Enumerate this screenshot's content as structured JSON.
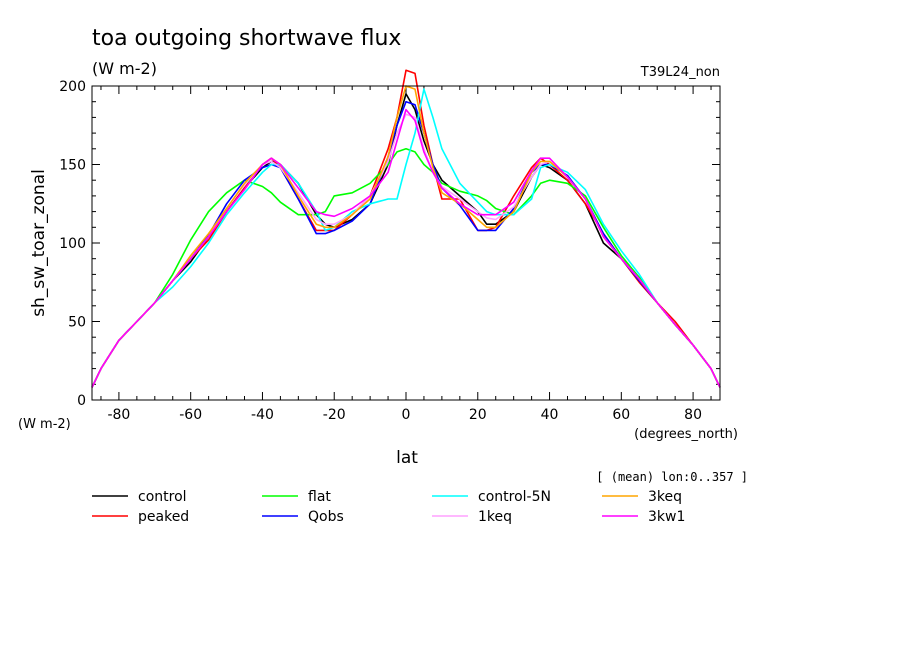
{
  "header": {
    "title": "toa outgoing shortwave flux",
    "units": "(W m-2)",
    "run": "T39L24_non"
  },
  "axes": {
    "ylabel": "sh_sw_toar_zonal",
    "y_units": "(W m-2)",
    "xlabel": "lat",
    "x_units": "(degrees_north)",
    "mean_note": "[ (mean) lon:0..357 ]"
  },
  "chart_data": {
    "type": "line",
    "title": "toa outgoing shortwave flux",
    "subtitle": "(W m-2)",
    "xlabel": "lat",
    "ylabel": "sh_sw_toar_zonal",
    "xlim": [
      -87.5,
      87.5
    ],
    "ylim": [
      0,
      200
    ],
    "xticks": [
      -80,
      -60,
      -40,
      -20,
      0,
      20,
      40,
      60,
      80
    ],
    "yticks": [
      0,
      50,
      100,
      150,
      200
    ],
    "x": [
      -87.5,
      -85,
      -80,
      -75,
      -70,
      -65,
      -60,
      -55,
      -50,
      -45,
      -40,
      -37.5,
      -35,
      -30,
      -25,
      -22.5,
      -20,
      -15,
      -10,
      -5,
      -2.5,
      0,
      2.5,
      5,
      7.5,
      10,
      15,
      20,
      22.5,
      25,
      30,
      35,
      37.5,
      40,
      45,
      50,
      55,
      60,
      65,
      70,
      75,
      80,
      85,
      87.5
    ],
    "series": [
      {
        "name": "control",
        "color": "#000000",
        "values": [
          8,
          20,
          38,
          50,
          62,
          76,
          88,
          104,
          120,
          135,
          148,
          152,
          150,
          138,
          118,
          112,
          110,
          115,
          125,
          150,
          175,
          195,
          185,
          165,
          150,
          140,
          130,
          120,
          112,
          112,
          120,
          142,
          150,
          148,
          140,
          125,
          100,
          90,
          78,
          62,
          48,
          35,
          20,
          8
        ]
      },
      {
        "name": "peaked",
        "color": "#ff0000",
        "values": [
          8,
          20,
          38,
          50,
          62,
          76,
          90,
          102,
          120,
          135,
          150,
          154,
          148,
          128,
          108,
          108,
          108,
          118,
          130,
          160,
          180,
          210,
          208,
          175,
          150,
          128,
          128,
          108,
          108,
          110,
          130,
          148,
          154,
          150,
          140,
          125,
          106,
          90,
          75,
          62,
          50,
          35,
          20,
          8
        ]
      },
      {
        "name": "flat",
        "color": "#00ff00",
        "values": [
          8,
          20,
          38,
          50,
          62,
          80,
          102,
          120,
          132,
          140,
          136,
          132,
          126,
          118,
          118,
          120,
          130,
          132,
          138,
          150,
          158,
          160,
          158,
          150,
          145,
          138,
          133,
          130,
          127,
          122,
          118,
          130,
          138,
          140,
          138,
          130,
          110,
          92,
          78,
          62,
          48,
          35,
          20,
          8
        ]
      },
      {
        "name": "Qobs",
        "color": "#0000ff",
        "values": [
          8,
          20,
          38,
          50,
          62,
          76,
          90,
          105,
          125,
          140,
          148,
          150,
          148,
          128,
          106,
          106,
          108,
          114,
          125,
          155,
          175,
          190,
          188,
          170,
          150,
          135,
          124,
          108,
          108,
          108,
          122,
          145,
          150,
          150,
          143,
          128,
          106,
          90,
          76,
          62,
          48,
          35,
          20,
          8
        ]
      },
      {
        "name": "control-5N",
        "color": "#00ffff",
        "values": [
          8,
          20,
          38,
          50,
          62,
          72,
          85,
          100,
          118,
          132,
          145,
          150,
          150,
          138,
          120,
          108,
          110,
          120,
          125,
          128,
          128,
          150,
          170,
          198,
          180,
          160,
          138,
          126,
          120,
          118,
          118,
          128,
          148,
          150,
          145,
          134,
          112,
          95,
          80,
          62,
          48,
          35,
          20,
          8
        ]
      },
      {
        "name": "1keq",
        "color": "#ffa0ff",
        "values": [
          8,
          20,
          38,
          50,
          62,
          76,
          90,
          104,
          122,
          137,
          150,
          152,
          148,
          132,
          115,
          112,
          112,
          118,
          130,
          152,
          170,
          182,
          180,
          160,
          145,
          136,
          128,
          120,
          116,
          115,
          123,
          142,
          150,
          152,
          142,
          128,
          104,
          90,
          77,
          62,
          48,
          35,
          20,
          8
        ]
      },
      {
        "name": "3keq",
        "color": "#ffa500",
        "values": [
          8,
          20,
          38,
          50,
          62,
          76,
          92,
          106,
          122,
          138,
          150,
          154,
          150,
          130,
          112,
          110,
          110,
          118,
          128,
          155,
          180,
          200,
          198,
          170,
          148,
          132,
          125,
          115,
          110,
          110,
          120,
          145,
          152,
          152,
          142,
          128,
          104,
          90,
          77,
          62,
          48,
          35,
          20,
          8
        ]
      },
      {
        "name": "3kw1",
        "color": "#ff00ff",
        "values": [
          8,
          20,
          38,
          50,
          62,
          76,
          90,
          104,
          120,
          134,
          150,
          154,
          150,
          135,
          120,
          118,
          117,
          122,
          130,
          145,
          165,
          185,
          178,
          158,
          145,
          135,
          125,
          118,
          118,
          118,
          126,
          146,
          154,
          154,
          142,
          128,
          104,
          90,
          77,
          62,
          48,
          35,
          20,
          8
        ]
      }
    ]
  }
}
